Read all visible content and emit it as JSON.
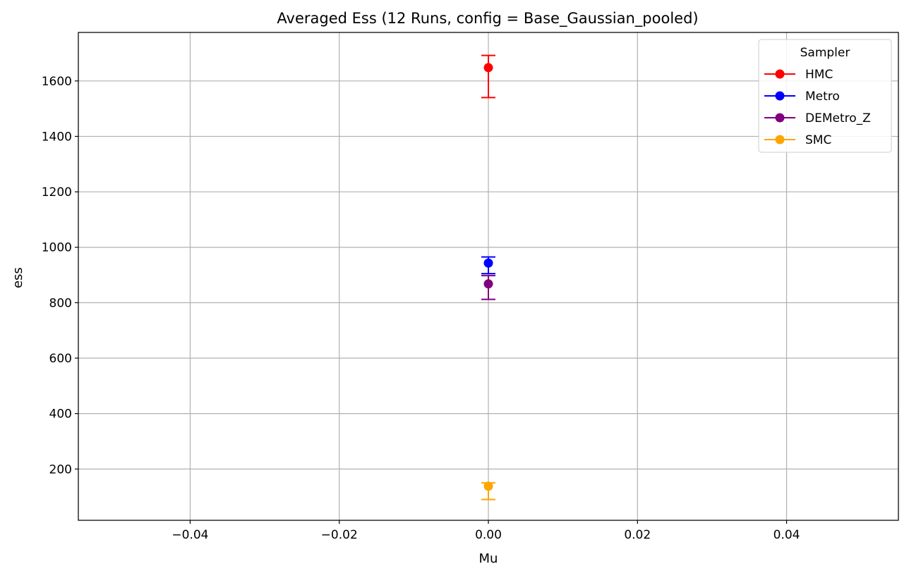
{
  "chart_data": {
    "type": "scatter",
    "title": "Averaged Ess (12 Runs, config = Base_Gaussian_pooled)",
    "xlabel": "Mu",
    "ylabel": "ess",
    "xlim": [
      -0.055,
      0.055
    ],
    "ylim": [
      15,
      1775
    ],
    "xticks": [
      -0.04,
      -0.02,
      0.0,
      0.02,
      0.04
    ],
    "xtick_labels": [
      "−0.04",
      "−0.02",
      "0.00",
      "0.02",
      "0.04"
    ],
    "yticks": [
      200,
      400,
      600,
      800,
      1000,
      1200,
      1400,
      1600
    ],
    "ytick_labels": [
      "200",
      "400",
      "600",
      "800",
      "1000",
      "1200",
      "1400",
      "1600"
    ],
    "grid": true,
    "legend": {
      "title": "Sampler",
      "placement": "top-right"
    },
    "series": [
      {
        "name": "HMC",
        "color": "#ff0000",
        "x": [
          0.0
        ],
        "y": [
          1648
        ],
        "err_low": [
          1540
        ],
        "err_high": [
          1692
        ]
      },
      {
        "name": "Metro",
        "color": "#0000ff",
        "x": [
          0.0
        ],
        "y": [
          943
        ],
        "err_low": [
          905
        ],
        "err_high": [
          965
        ]
      },
      {
        "name": "DEMetro_Z",
        "color": "#800080",
        "x": [
          0.0
        ],
        "y": [
          868
        ],
        "err_low": [
          812
        ],
        "err_high": [
          898
        ]
      },
      {
        "name": "SMC",
        "color": "#ffa500",
        "x": [
          0.0
        ],
        "y": [
          138
        ],
        "err_low": [
          90
        ],
        "err_high": [
          150
        ]
      }
    ]
  }
}
